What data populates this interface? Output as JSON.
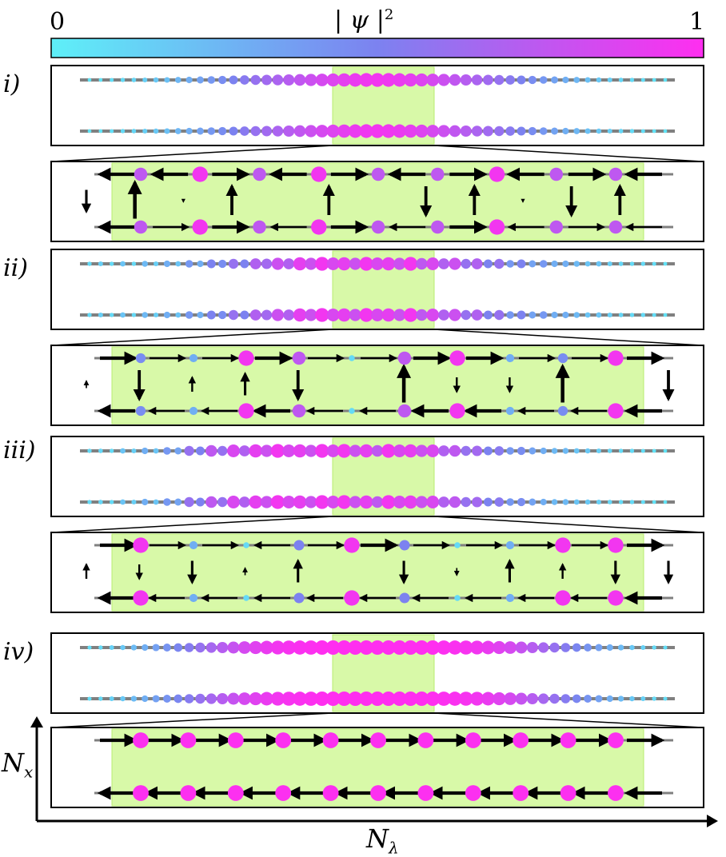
{
  "colorbar": {
    "min_label": "0",
    "max_label": "1",
    "title": "| ψ |",
    "title_sup": "2",
    "color_min": "#5ef0f8",
    "color_mid": "#7c82f0",
    "color_max": "#ff2ef0"
  },
  "axes": {
    "x_label": "N",
    "x_sub": "λ",
    "y_label": "N",
    "y_sub": "x"
  },
  "colors": {
    "highlight": "#d8f9a8",
    "highlight_border": "#b8ec70",
    "rail": "#808080",
    "arrow": "#000000"
  },
  "panels": [
    {
      "label": "i)",
      "overview": {
        "top": [
          0.05,
          0.06,
          0.08,
          0.1,
          0.12,
          0.15,
          0.18,
          0.22,
          0.26,
          0.3,
          0.35,
          0.4,
          0.45,
          0.5,
          0.55,
          0.6,
          0.64,
          0.68,
          0.72,
          0.76,
          0.8,
          0.84,
          0.87,
          0.9,
          0.92,
          0.94,
          0.95,
          0.94,
          0.92,
          0.9,
          0.87,
          0.84,
          0.8,
          0.76,
          0.72,
          0.68,
          0.64,
          0.6,
          0.55,
          0.5,
          0.45,
          0.4,
          0.35,
          0.3,
          0.26,
          0.22,
          0.18,
          0.15,
          0.12,
          0.1,
          0.08,
          0.06,
          0.05
        ],
        "bottom": [
          0.05,
          0.06,
          0.08,
          0.1,
          0.12,
          0.15,
          0.18,
          0.22,
          0.26,
          0.3,
          0.35,
          0.4,
          0.45,
          0.5,
          0.55,
          0.6,
          0.64,
          0.68,
          0.72,
          0.76,
          0.8,
          0.84,
          0.87,
          0.9,
          0.92,
          0.94,
          0.95,
          0.94,
          0.92,
          0.9,
          0.87,
          0.84,
          0.8,
          0.76,
          0.72,
          0.68,
          0.64,
          0.6,
          0.55,
          0.5,
          0.45,
          0.4,
          0.35,
          0.3,
          0.26,
          0.22,
          0.18,
          0.15,
          0.12,
          0.1,
          0.08,
          0.06,
          0.05
        ]
      },
      "zoom": {
        "top": [
          0.75,
          0.95,
          0.75,
          0.95,
          0.75,
          0.75,
          0.95,
          0.75,
          0.75
        ],
        "bottom": [
          0.75,
          0.95,
          0.75,
          0.95,
          0.75,
          0.75,
          0.95,
          0.75,
          0.75
        ],
        "top_arrows": [
          -2,
          -2,
          2,
          -2,
          2,
          -2,
          2,
          -2,
          2,
          -2,
          2
        ],
        "bottom_arrows": [
          -2,
          1,
          2,
          -1,
          2,
          -1,
          2,
          -1,
          1,
          -1,
          -2
        ],
        "vertical": [
          -1.5,
          2.5,
          -0.2,
          2,
          0,
          2,
          0,
          -2,
          2,
          -0.2,
          -2,
          2,
          -0.1
        ]
      }
    },
    {
      "label": "ii)",
      "overview": {
        "top": [
          0.1,
          0.15,
          0.1,
          0.2,
          0.1,
          0.25,
          0.15,
          0.3,
          0.2,
          0.4,
          0.3,
          0.5,
          0.45,
          0.6,
          0.5,
          0.7,
          0.65,
          0.8,
          0.7,
          0.9,
          0.8,
          0.95,
          0.85,
          0.9,
          0.8,
          0.95,
          0.85,
          0.9,
          0.8,
          0.95,
          0.75,
          0.85,
          0.7,
          0.8,
          0.6,
          0.7,
          0.5,
          0.6,
          0.4,
          0.5,
          0.35,
          0.4,
          0.3,
          0.3,
          0.25,
          0.2,
          0.2,
          0.15,
          0.12,
          0.1,
          0.1,
          0.08,
          0.06
        ],
        "bottom": [
          0.1,
          0.15,
          0.1,
          0.2,
          0.1,
          0.25,
          0.15,
          0.3,
          0.2,
          0.4,
          0.3,
          0.5,
          0.45,
          0.6,
          0.5,
          0.7,
          0.65,
          0.8,
          0.7,
          0.9,
          0.8,
          0.95,
          0.85,
          0.9,
          0.8,
          0.95,
          0.85,
          0.9,
          0.8,
          0.95,
          0.75,
          0.85,
          0.7,
          0.8,
          0.6,
          0.7,
          0.5,
          0.6,
          0.4,
          0.5,
          0.35,
          0.4,
          0.3,
          0.3,
          0.25,
          0.2,
          0.2,
          0.15,
          0.12,
          0.1,
          0.1,
          0.08,
          0.06
        ]
      },
      "zoom": {
        "top": [
          0.45,
          0.3,
          0.95,
          0.75,
          0.1,
          0.75,
          0.95,
          0.3,
          0.45,
          0.95
        ],
        "bottom": [
          0.45,
          0.3,
          0.95,
          0.75,
          0.1,
          0.75,
          0.95,
          0.3,
          0.45,
          0.95
        ],
        "top_arrows": [
          2,
          1,
          1,
          2,
          1,
          1,
          2,
          2,
          1,
          1,
          2
        ],
        "bottom_arrows": [
          -2,
          -1,
          -1,
          -2,
          -1,
          -1,
          -2,
          -2,
          -1,
          -1,
          -2
        ],
        "vertical": [
          0.5,
          -2,
          1,
          1.5,
          -2,
          -0.1,
          2.5,
          -1,
          -1,
          2.5,
          -0.1,
          -2
        ]
      }
    },
    {
      "label": "iii)",
      "overview": {
        "top": [
          0.1,
          0.12,
          0.1,
          0.2,
          0.15,
          0.3,
          0.2,
          0.4,
          0.35,
          0.6,
          0.5,
          0.75,
          0.6,
          0.85,
          0.7,
          0.9,
          0.8,
          0.95,
          0.85,
          0.9,
          0.8,
          0.95,
          0.85,
          0.95,
          0.8,
          0.9,
          0.75,
          0.95,
          0.85,
          0.9,
          0.8,
          0.85,
          0.7,
          0.75,
          0.6,
          0.65,
          0.5,
          0.55,
          0.4,
          0.45,
          0.35,
          0.3,
          0.25,
          0.25,
          0.2,
          0.18,
          0.15,
          0.12,
          0.1,
          0.1,
          0.08,
          0.06,
          0.05
        ],
        "bottom": [
          0.1,
          0.12,
          0.1,
          0.2,
          0.15,
          0.3,
          0.2,
          0.4,
          0.35,
          0.6,
          0.5,
          0.75,
          0.6,
          0.85,
          0.7,
          0.9,
          0.8,
          0.95,
          0.85,
          0.9,
          0.8,
          0.95,
          0.85,
          0.95,
          0.8,
          0.9,
          0.75,
          0.95,
          0.85,
          0.9,
          0.8,
          0.85,
          0.7,
          0.75,
          0.6,
          0.65,
          0.5,
          0.55,
          0.4,
          0.45,
          0.35,
          0.3,
          0.25,
          0.25,
          0.2,
          0.18,
          0.15,
          0.12,
          0.1,
          0.1,
          0.08,
          0.06,
          0.05
        ]
      },
      "zoom": {
        "top": [
          0.95,
          0.3,
          0.1,
          0.5,
          0.95,
          0.5,
          0.1,
          0.3,
          0.95,
          0.95
        ],
        "bottom": [
          0.95,
          0.3,
          0.1,
          0.5,
          0.95,
          0.5,
          0.1,
          0.3,
          0.95,
          0.95
        ],
        "top_arrows": [
          2,
          1,
          1,
          -1,
          1,
          2,
          1,
          1,
          1,
          1,
          2
        ],
        "bottom_arrows": [
          -2,
          -1,
          -1,
          -1,
          -1,
          -1,
          -1,
          -1,
          -1,
          -1,
          -2
        ],
        "vertical": [
          1,
          -1,
          -1.5,
          0.5,
          1.5,
          0,
          -1.5,
          -0.5,
          1.5,
          1,
          -1.5,
          -1.5
        ]
      }
    },
    {
      "label": "iv)",
      "overview": {
        "top": [
          0.08,
          0.1,
          0.14,
          0.18,
          0.24,
          0.3,
          0.36,
          0.42,
          0.48,
          0.54,
          0.6,
          0.66,
          0.72,
          0.78,
          0.84,
          0.88,
          0.92,
          0.95,
          0.97,
          0.98,
          0.99,
          1,
          1,
          1,
          1,
          1,
          1,
          1,
          1,
          1,
          1,
          1,
          0.99,
          0.98,
          0.97,
          0.95,
          0.92,
          0.88,
          0.84,
          0.78,
          0.72,
          0.66,
          0.6,
          0.54,
          0.48,
          0.42,
          0.36,
          0.3,
          0.24,
          0.18,
          0.14,
          0.1,
          0.08
        ],
        "bottom": [
          0.08,
          0.1,
          0.14,
          0.18,
          0.24,
          0.3,
          0.36,
          0.42,
          0.48,
          0.54,
          0.6,
          0.66,
          0.72,
          0.78,
          0.84,
          0.88,
          0.92,
          0.95,
          0.97,
          0.98,
          0.99,
          1,
          1,
          1,
          1,
          1,
          1,
          1,
          1,
          1,
          1,
          1,
          0.99,
          0.98,
          0.97,
          0.95,
          0.92,
          0.88,
          0.84,
          0.78,
          0.72,
          0.66,
          0.6,
          0.54,
          0.48,
          0.42,
          0.36,
          0.3,
          0.24,
          0.18,
          0.14,
          0.1,
          0.08
        ]
      },
      "zoom": {
        "top": [
          0.99,
          0.99,
          0.99,
          0.99,
          0.99,
          0.99,
          0.99,
          0.99,
          0.99,
          0.99,
          0.99
        ],
        "bottom": [
          0.99,
          0.99,
          0.99,
          0.99,
          0.99,
          0.99,
          0.99,
          0.99,
          0.99,
          0.99,
          0.99
        ],
        "top_arrows": [
          2,
          2,
          2,
          2,
          2,
          2,
          2,
          2,
          2,
          2,
          2,
          2
        ],
        "bottom_arrows": [
          -2,
          -2,
          -2,
          -2,
          -2,
          -2,
          -2,
          -2,
          -2,
          -2,
          -2,
          -2
        ],
        "vertical": [
          -0.1,
          -0.1,
          -0.1,
          -0.1,
          -0.1,
          -0.1,
          -0.1,
          0.1,
          0.1,
          0.1,
          0.1
        ]
      }
    }
  ]
}
